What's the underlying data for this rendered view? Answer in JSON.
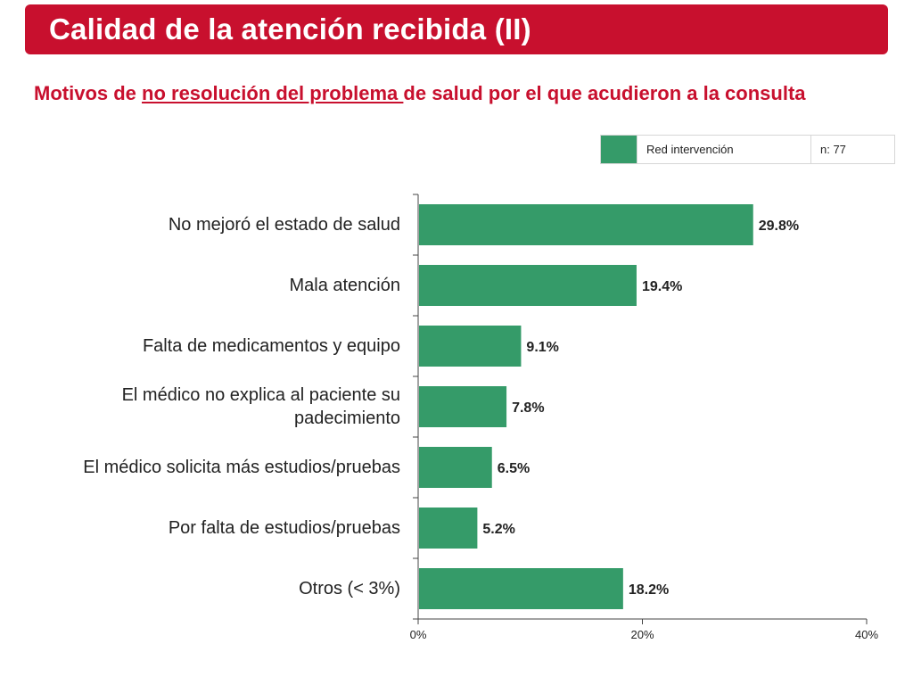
{
  "header": {
    "title": "Calidad de la atención recibida (II)"
  },
  "subtitle": {
    "before": "Motivos de ",
    "underlined": "no resolución del problema ",
    "after": "de salud por el que acudieron a la consulta"
  },
  "legend": {
    "series_label": "Red intervención",
    "n_label": "n: 77",
    "color": "#359b69"
  },
  "chart_data": {
    "type": "bar",
    "orientation": "horizontal",
    "categories": [
      "No mejoró el estado de salud",
      "Mala atención",
      "Falta de medicamentos y equipo",
      "El médico no explica al paciente su padecimiento",
      "El médico solicita más estudios/pruebas",
      "Por falta de estudios/pruebas",
      "Otros (< 3%)"
    ],
    "series": [
      {
        "name": "Red intervención",
        "values": [
          29.8,
          19.4,
          9.1,
          7.8,
          6.5,
          5.2,
          18.2
        ]
      }
    ],
    "value_labels": [
      "29.8%",
      "19.4%",
      "9.1%",
      "7.8%",
      "6.5%",
      "5.2%",
      "18.2%"
    ],
    "xlim": [
      0,
      40
    ],
    "xticks": [
      0,
      20,
      40
    ],
    "xtick_labels": [
      "0%",
      "20%",
      "40%"
    ],
    "grid": false,
    "legend_position": "top-right",
    "bar_color": "#359b69"
  }
}
